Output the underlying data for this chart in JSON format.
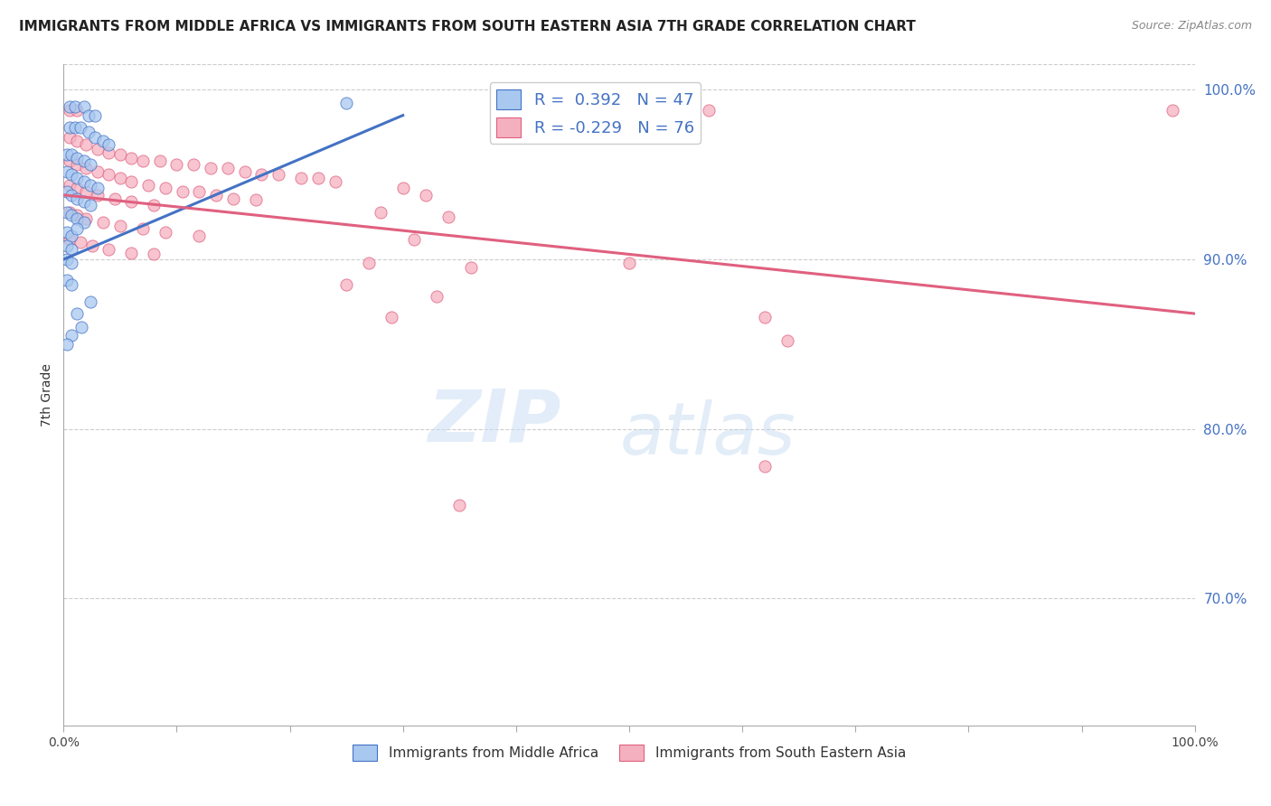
{
  "title": "IMMIGRANTS FROM MIDDLE AFRICA VS IMMIGRANTS FROM SOUTH EASTERN ASIA 7TH GRADE CORRELATION CHART",
  "source": "Source: ZipAtlas.com",
  "ylabel": "7th Grade",
  "ytick_labels": [
    "100.0%",
    "90.0%",
    "80.0%",
    "70.0%"
  ],
  "ytick_values": [
    1.0,
    0.9,
    0.8,
    0.7
  ],
  "xlim": [
    0.0,
    1.0
  ],
  "ylim": [
    0.625,
    1.015
  ],
  "legend_labels": [
    "Immigrants from Middle Africa",
    "Immigrants from South Eastern Asia"
  ],
  "legend_R_blue": "R =  0.392",
  "legend_R_pink": "R = -0.229",
  "legend_N_blue": "N = 47",
  "legend_N_pink": "N = 76",
  "blue_color": "#a8c8f0",
  "pink_color": "#f5b0c0",
  "trendline_blue": "#4472c4",
  "trendline_pink": "#e06080",
  "blue_scatter": [
    [
      0.005,
      0.99
    ],
    [
      0.01,
      0.99
    ],
    [
      0.018,
      0.99
    ],
    [
      0.022,
      0.985
    ],
    [
      0.028,
      0.985
    ],
    [
      0.005,
      0.978
    ],
    [
      0.01,
      0.978
    ],
    [
      0.015,
      0.978
    ],
    [
      0.022,
      0.975
    ],
    [
      0.028,
      0.972
    ],
    [
      0.035,
      0.97
    ],
    [
      0.04,
      0.968
    ],
    [
      0.003,
      0.962
    ],
    [
      0.007,
      0.962
    ],
    [
      0.012,
      0.96
    ],
    [
      0.018,
      0.958
    ],
    [
      0.024,
      0.956
    ],
    [
      0.003,
      0.952
    ],
    [
      0.007,
      0.95
    ],
    [
      0.012,
      0.948
    ],
    [
      0.018,
      0.946
    ],
    [
      0.024,
      0.944
    ],
    [
      0.03,
      0.942
    ],
    [
      0.003,
      0.94
    ],
    [
      0.007,
      0.938
    ],
    [
      0.012,
      0.936
    ],
    [
      0.018,
      0.934
    ],
    [
      0.024,
      0.932
    ],
    [
      0.003,
      0.928
    ],
    [
      0.007,
      0.926
    ],
    [
      0.012,
      0.924
    ],
    [
      0.018,
      0.922
    ],
    [
      0.003,
      0.916
    ],
    [
      0.007,
      0.914
    ],
    [
      0.012,
      0.918
    ],
    [
      0.003,
      0.908
    ],
    [
      0.007,
      0.906
    ],
    [
      0.003,
      0.9
    ],
    [
      0.007,
      0.898
    ],
    [
      0.003,
      0.888
    ],
    [
      0.007,
      0.885
    ],
    [
      0.024,
      0.875
    ],
    [
      0.012,
      0.868
    ],
    [
      0.25,
      0.992
    ],
    [
      0.016,
      0.86
    ],
    [
      0.007,
      0.855
    ],
    [
      0.003,
      0.85
    ]
  ],
  "pink_scatter": [
    [
      0.005,
      0.988
    ],
    [
      0.012,
      0.988
    ],
    [
      0.5,
      0.988
    ],
    [
      0.57,
      0.988
    ],
    [
      0.98,
      0.988
    ],
    [
      0.005,
      0.972
    ],
    [
      0.012,
      0.97
    ],
    [
      0.02,
      0.968
    ],
    [
      0.03,
      0.965
    ],
    [
      0.04,
      0.963
    ],
    [
      0.05,
      0.962
    ],
    [
      0.06,
      0.96
    ],
    [
      0.07,
      0.958
    ],
    [
      0.085,
      0.958
    ],
    [
      0.1,
      0.956
    ],
    [
      0.115,
      0.956
    ],
    [
      0.13,
      0.954
    ],
    [
      0.145,
      0.954
    ],
    [
      0.16,
      0.952
    ],
    [
      0.175,
      0.95
    ],
    [
      0.19,
      0.95
    ],
    [
      0.21,
      0.948
    ],
    [
      0.225,
      0.948
    ],
    [
      0.24,
      0.946
    ],
    [
      0.005,
      0.958
    ],
    [
      0.012,
      0.956
    ],
    [
      0.02,
      0.954
    ],
    [
      0.03,
      0.952
    ],
    [
      0.04,
      0.95
    ],
    [
      0.05,
      0.948
    ],
    [
      0.06,
      0.946
    ],
    [
      0.075,
      0.944
    ],
    [
      0.09,
      0.942
    ],
    [
      0.105,
      0.94
    ],
    [
      0.12,
      0.94
    ],
    [
      0.135,
      0.938
    ],
    [
      0.15,
      0.936
    ],
    [
      0.17,
      0.935
    ],
    [
      0.005,
      0.944
    ],
    [
      0.012,
      0.942
    ],
    [
      0.02,
      0.94
    ],
    [
      0.03,
      0.938
    ],
    [
      0.045,
      0.936
    ],
    [
      0.06,
      0.934
    ],
    [
      0.08,
      0.932
    ],
    [
      0.005,
      0.928
    ],
    [
      0.012,
      0.926
    ],
    [
      0.02,
      0.924
    ],
    [
      0.035,
      0.922
    ],
    [
      0.05,
      0.92
    ],
    [
      0.07,
      0.918
    ],
    [
      0.09,
      0.916
    ],
    [
      0.12,
      0.914
    ],
    [
      0.005,
      0.912
    ],
    [
      0.015,
      0.91
    ],
    [
      0.025,
      0.908
    ],
    [
      0.04,
      0.906
    ],
    [
      0.06,
      0.904
    ],
    [
      0.08,
      0.903
    ],
    [
      0.3,
      0.942
    ],
    [
      0.32,
      0.938
    ],
    [
      0.28,
      0.928
    ],
    [
      0.34,
      0.925
    ],
    [
      0.31,
      0.912
    ],
    [
      0.27,
      0.898
    ],
    [
      0.36,
      0.895
    ],
    [
      0.25,
      0.885
    ],
    [
      0.33,
      0.878
    ],
    [
      0.29,
      0.866
    ],
    [
      0.5,
      0.898
    ],
    [
      0.62,
      0.866
    ],
    [
      0.64,
      0.852
    ],
    [
      0.62,
      0.778
    ],
    [
      0.35,
      0.755
    ]
  ],
  "pink_trend_x": [
    0.0,
    1.0
  ],
  "pink_trend_y": [
    0.938,
    0.868
  ],
  "blue_trend_x": [
    0.0,
    0.3
  ],
  "blue_trend_y": [
    0.9,
    0.985
  ]
}
